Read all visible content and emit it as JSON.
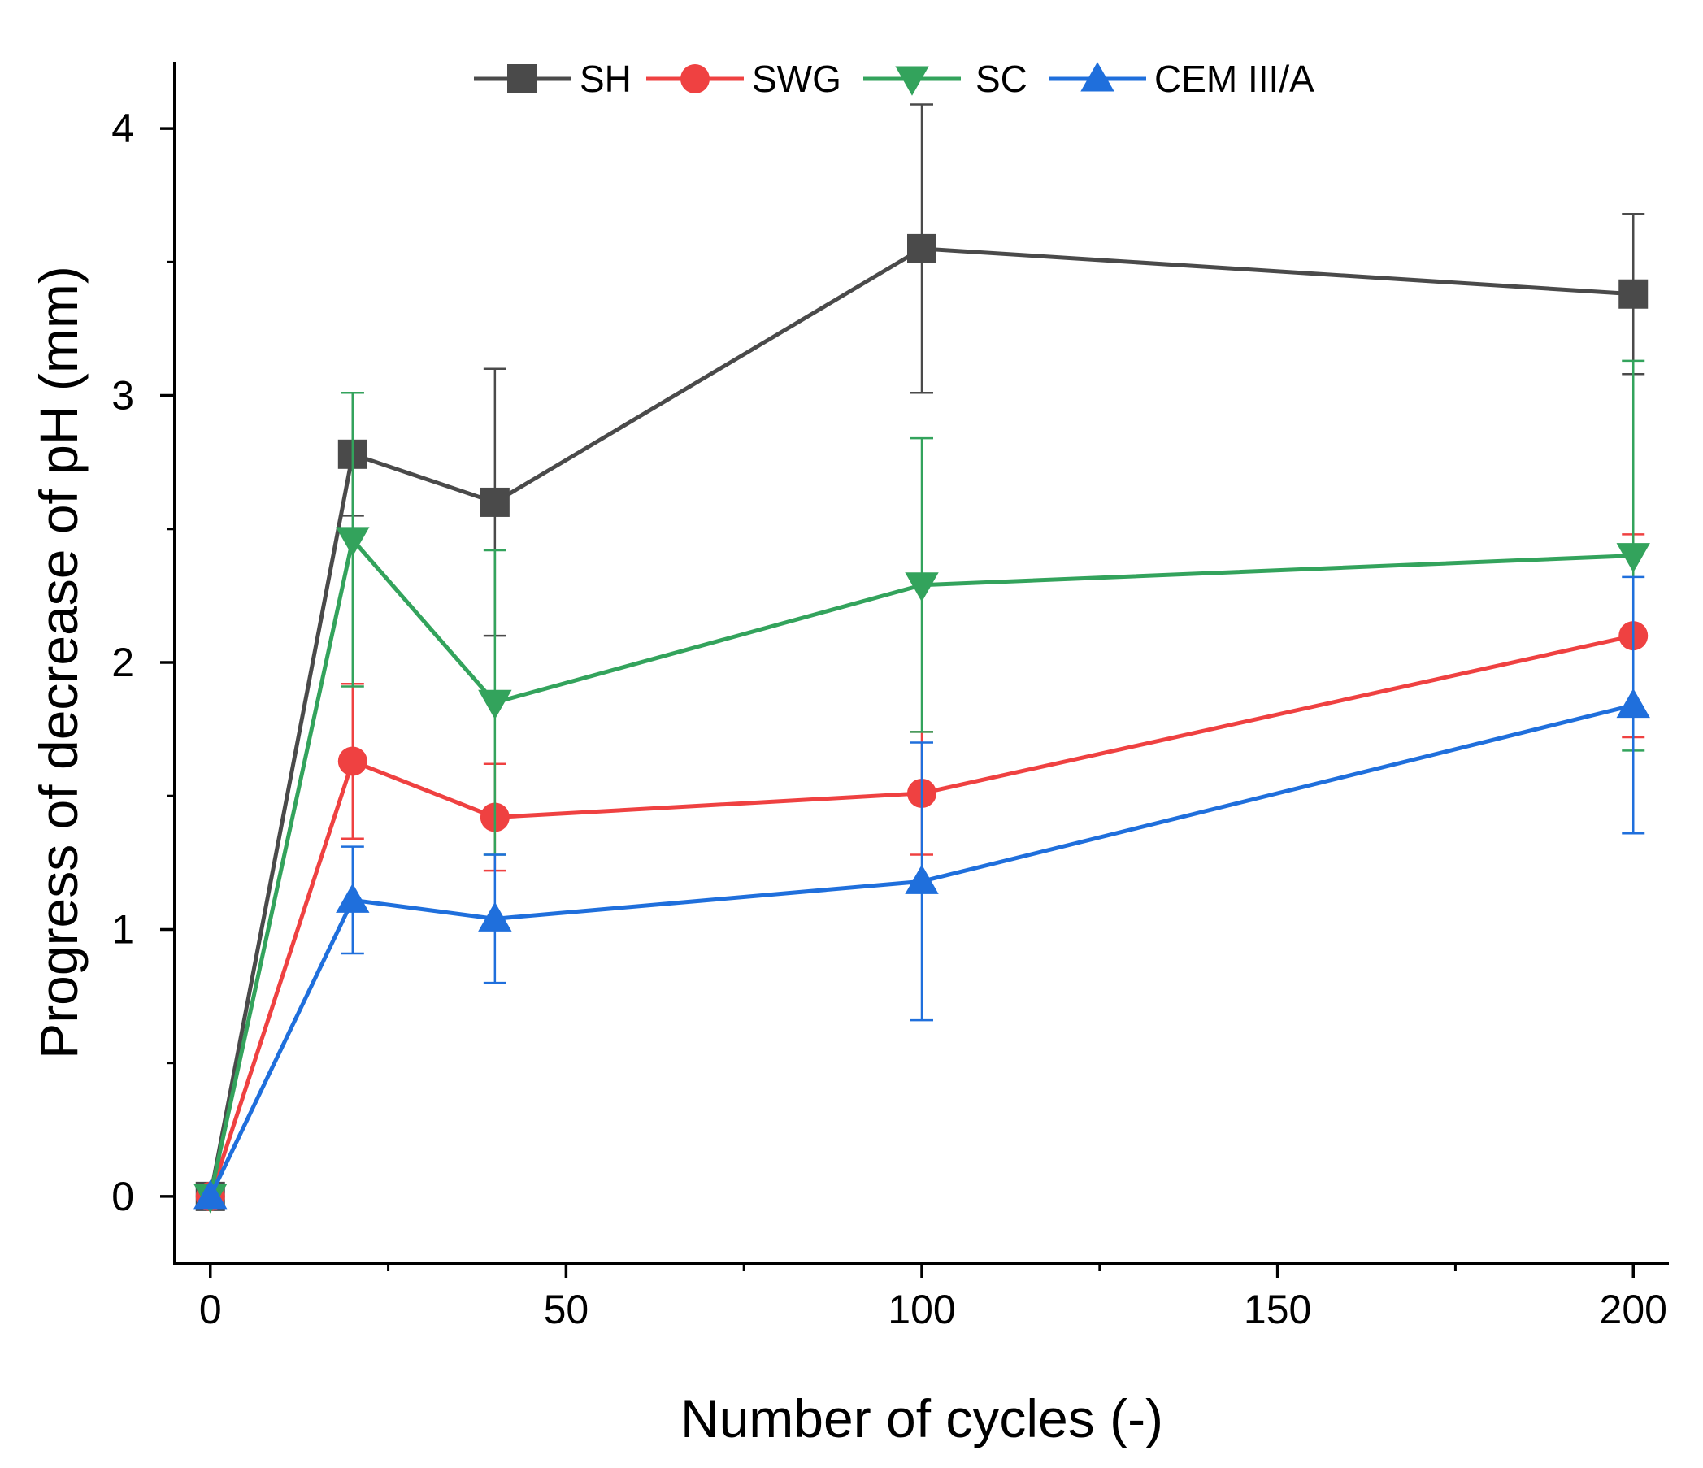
{
  "chart_data": {
    "type": "line",
    "title": "",
    "xlabel": "Number of cycles (-)",
    "ylabel": "Progress of decrease of pH (mm)",
    "xlim": [
      -5,
      205
    ],
    "ylim": [
      -0.25,
      4.25
    ],
    "x_ticks": [
      0,
      50,
      100,
      150,
      200
    ],
    "x_ticks_labels": [
      "0",
      "50",
      "100",
      "150",
      "200"
    ],
    "x_minor_ticks": [
      25,
      75,
      125,
      175
    ],
    "y_ticks": [
      0,
      1,
      2,
      3,
      4
    ],
    "y_ticks_labels": [
      "0",
      "1",
      "2",
      "3",
      "4"
    ],
    "y_minor_ticks": [
      0.5,
      1.5,
      2.5,
      3.5
    ],
    "grid": false,
    "legend_position": "top",
    "x": [
      0,
      20,
      40,
      100,
      200
    ],
    "series": [
      {
        "name": "SH",
        "color": "#4a4a4a",
        "marker": "square",
        "values": [
          0,
          2.78,
          2.6,
          3.55,
          3.38
        ],
        "errors": [
          0,
          0.23,
          0.5,
          0.54,
          0.3
        ]
      },
      {
        "name": "SWG",
        "color": "#ef4141",
        "marker": "circle",
        "values": [
          0,
          1.63,
          1.42,
          1.51,
          2.1
        ],
        "errors": [
          0,
          0.29,
          0.2,
          0.23,
          0.38
        ]
      },
      {
        "name": "SC",
        "color": "#33a35c",
        "marker": "triangle-down",
        "values": [
          0,
          2.46,
          1.85,
          2.29,
          2.4
        ],
        "errors": [
          0,
          0.55,
          0.57,
          0.55,
          0.73
        ]
      },
      {
        "name": "CEM III/A",
        "color": "#1f6fdc",
        "marker": "triangle-up",
        "values": [
          0,
          1.11,
          1.04,
          1.18,
          1.84
        ],
        "errors": [
          0,
          0.2,
          0.24,
          0.52,
          0.48
        ]
      }
    ]
  }
}
